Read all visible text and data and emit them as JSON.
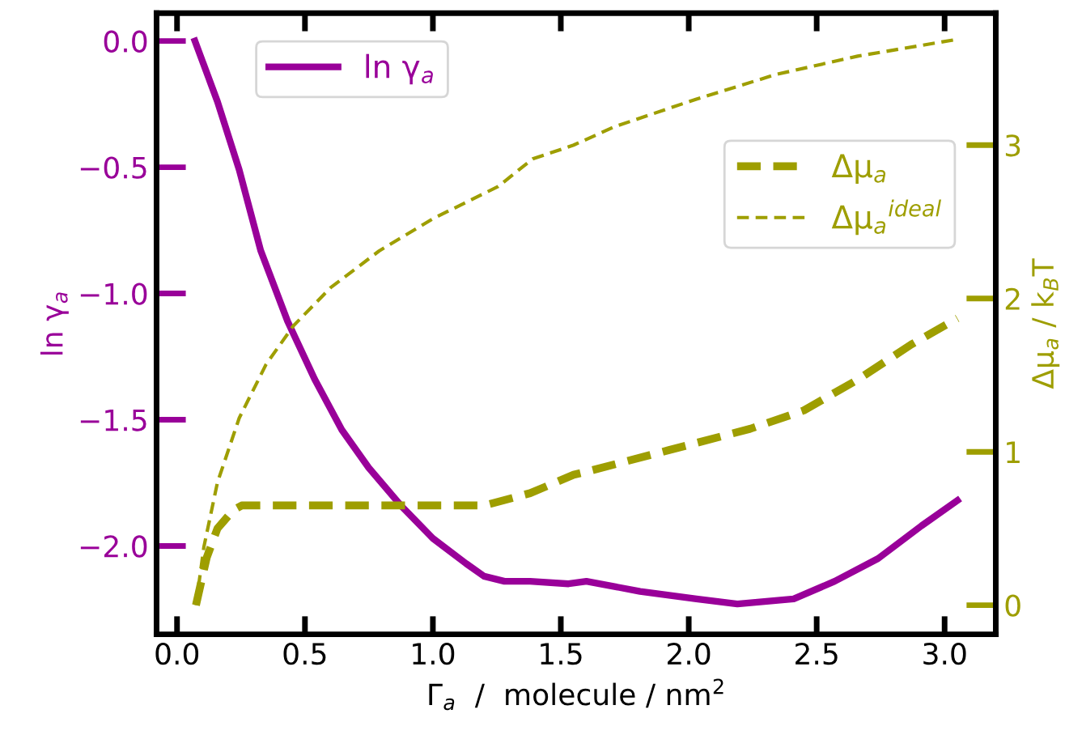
{
  "chart_data": {
    "type": "line",
    "xlabel": "Γ$_{a}$  /  molecule / nm$^{2}$",
    "ylabel": "ln γ$_{a}$",
    "y2label": "Δμ$_{a}$ / k$_{B}$T",
    "xlim": [
      -0.08,
      3.2
    ],
    "xticks": [
      {
        "value": 0,
        "label": "0.0"
      },
      0.5,
      {
        "value": 1,
        "label": "1.0"
      },
      1.5,
      {
        "value": 2,
        "label": "2.0"
      },
      2.5,
      {
        "value": 3,
        "label": "3.0"
      }
    ],
    "ylim": [
      -2.35,
      0.11
    ],
    "yticks": [
      {
        "value": 0,
        "label": "0.0"
      },
      {
        "value": -0.5,
        "label": "−0.5"
      },
      {
        "value": -1,
        "label": "−1.0"
      },
      {
        "value": -1.5,
        "label": "−1.5"
      },
      {
        "value": -2,
        "label": "−2.0"
      }
    ],
    "y2lim": [
      -0.19,
      3.86
    ],
    "y2ticks": [
      0,
      1,
      2,
      3
    ],
    "legend": "top left",
    "grid": false,
    "series": [
      {
        "name": "ln γ$_{a}$",
        "color": "#990099",
        "line_style": "solid",
        "x": [
          0.07,
          0.158,
          0.243,
          0.327,
          0.432,
          0.538,
          0.644,
          0.749,
          0.875,
          1.0,
          1.13,
          1.2,
          1.28,
          1.38,
          1.53,
          1.6,
          1.81,
          2.03,
          2.19,
          2.41,
          2.57,
          2.74,
          2.91,
          3.05
        ],
        "values": [
          0.0,
          -0.24,
          -0.51,
          -0.83,
          -1.11,
          -1.34,
          -1.54,
          -1.69,
          -1.84,
          -1.97,
          -2.07,
          -2.12,
          -2.14,
          -2.14,
          -2.15,
          -2.14,
          -2.18,
          -2.21,
          -2.23,
          -2.21,
          -2.14,
          -2.05,
          -1.92,
          -1.82
        ]
      },
      {
        "name": "Δμ$_{a}$",
        "color": "#9e9e00",
        "line_style": "dashed",
        "axis": "y2",
        "x": [
          0.074,
          0.116,
          0.158,
          0.22,
          0.253,
          1.2,
          1.38,
          1.55,
          1.6,
          1.92,
          2.24,
          2.45,
          2.66,
          2.87,
          3.05
        ],
        "values": [
          0.0,
          0.31,
          0.5,
          0.62,
          0.65,
          0.65,
          0.73,
          0.85,
          0.87,
          1.01,
          1.15,
          1.27,
          1.47,
          1.7,
          1.87
        ]
      },
      {
        "name": "Δμ$_{a}$$^{ideal}$",
        "color": "#9e9e00",
        "line_style": "dotted",
        "axis": "y2",
        "x": [
          0.074,
          0.105,
          0.158,
          0.243,
          0.348,
          0.454,
          0.6,
          0.79,
          1.0,
          1.255,
          1.39,
          1.55,
          1.71,
          2.03,
          2.34,
          2.66,
          3.05
        ],
        "values": [
          0.0,
          0.38,
          0.8,
          1.22,
          1.57,
          1.82,
          2.07,
          2.31,
          2.52,
          2.73,
          2.91,
          3.0,
          3.12,
          3.3,
          3.46,
          3.58,
          3.69
        ]
      }
    ]
  }
}
